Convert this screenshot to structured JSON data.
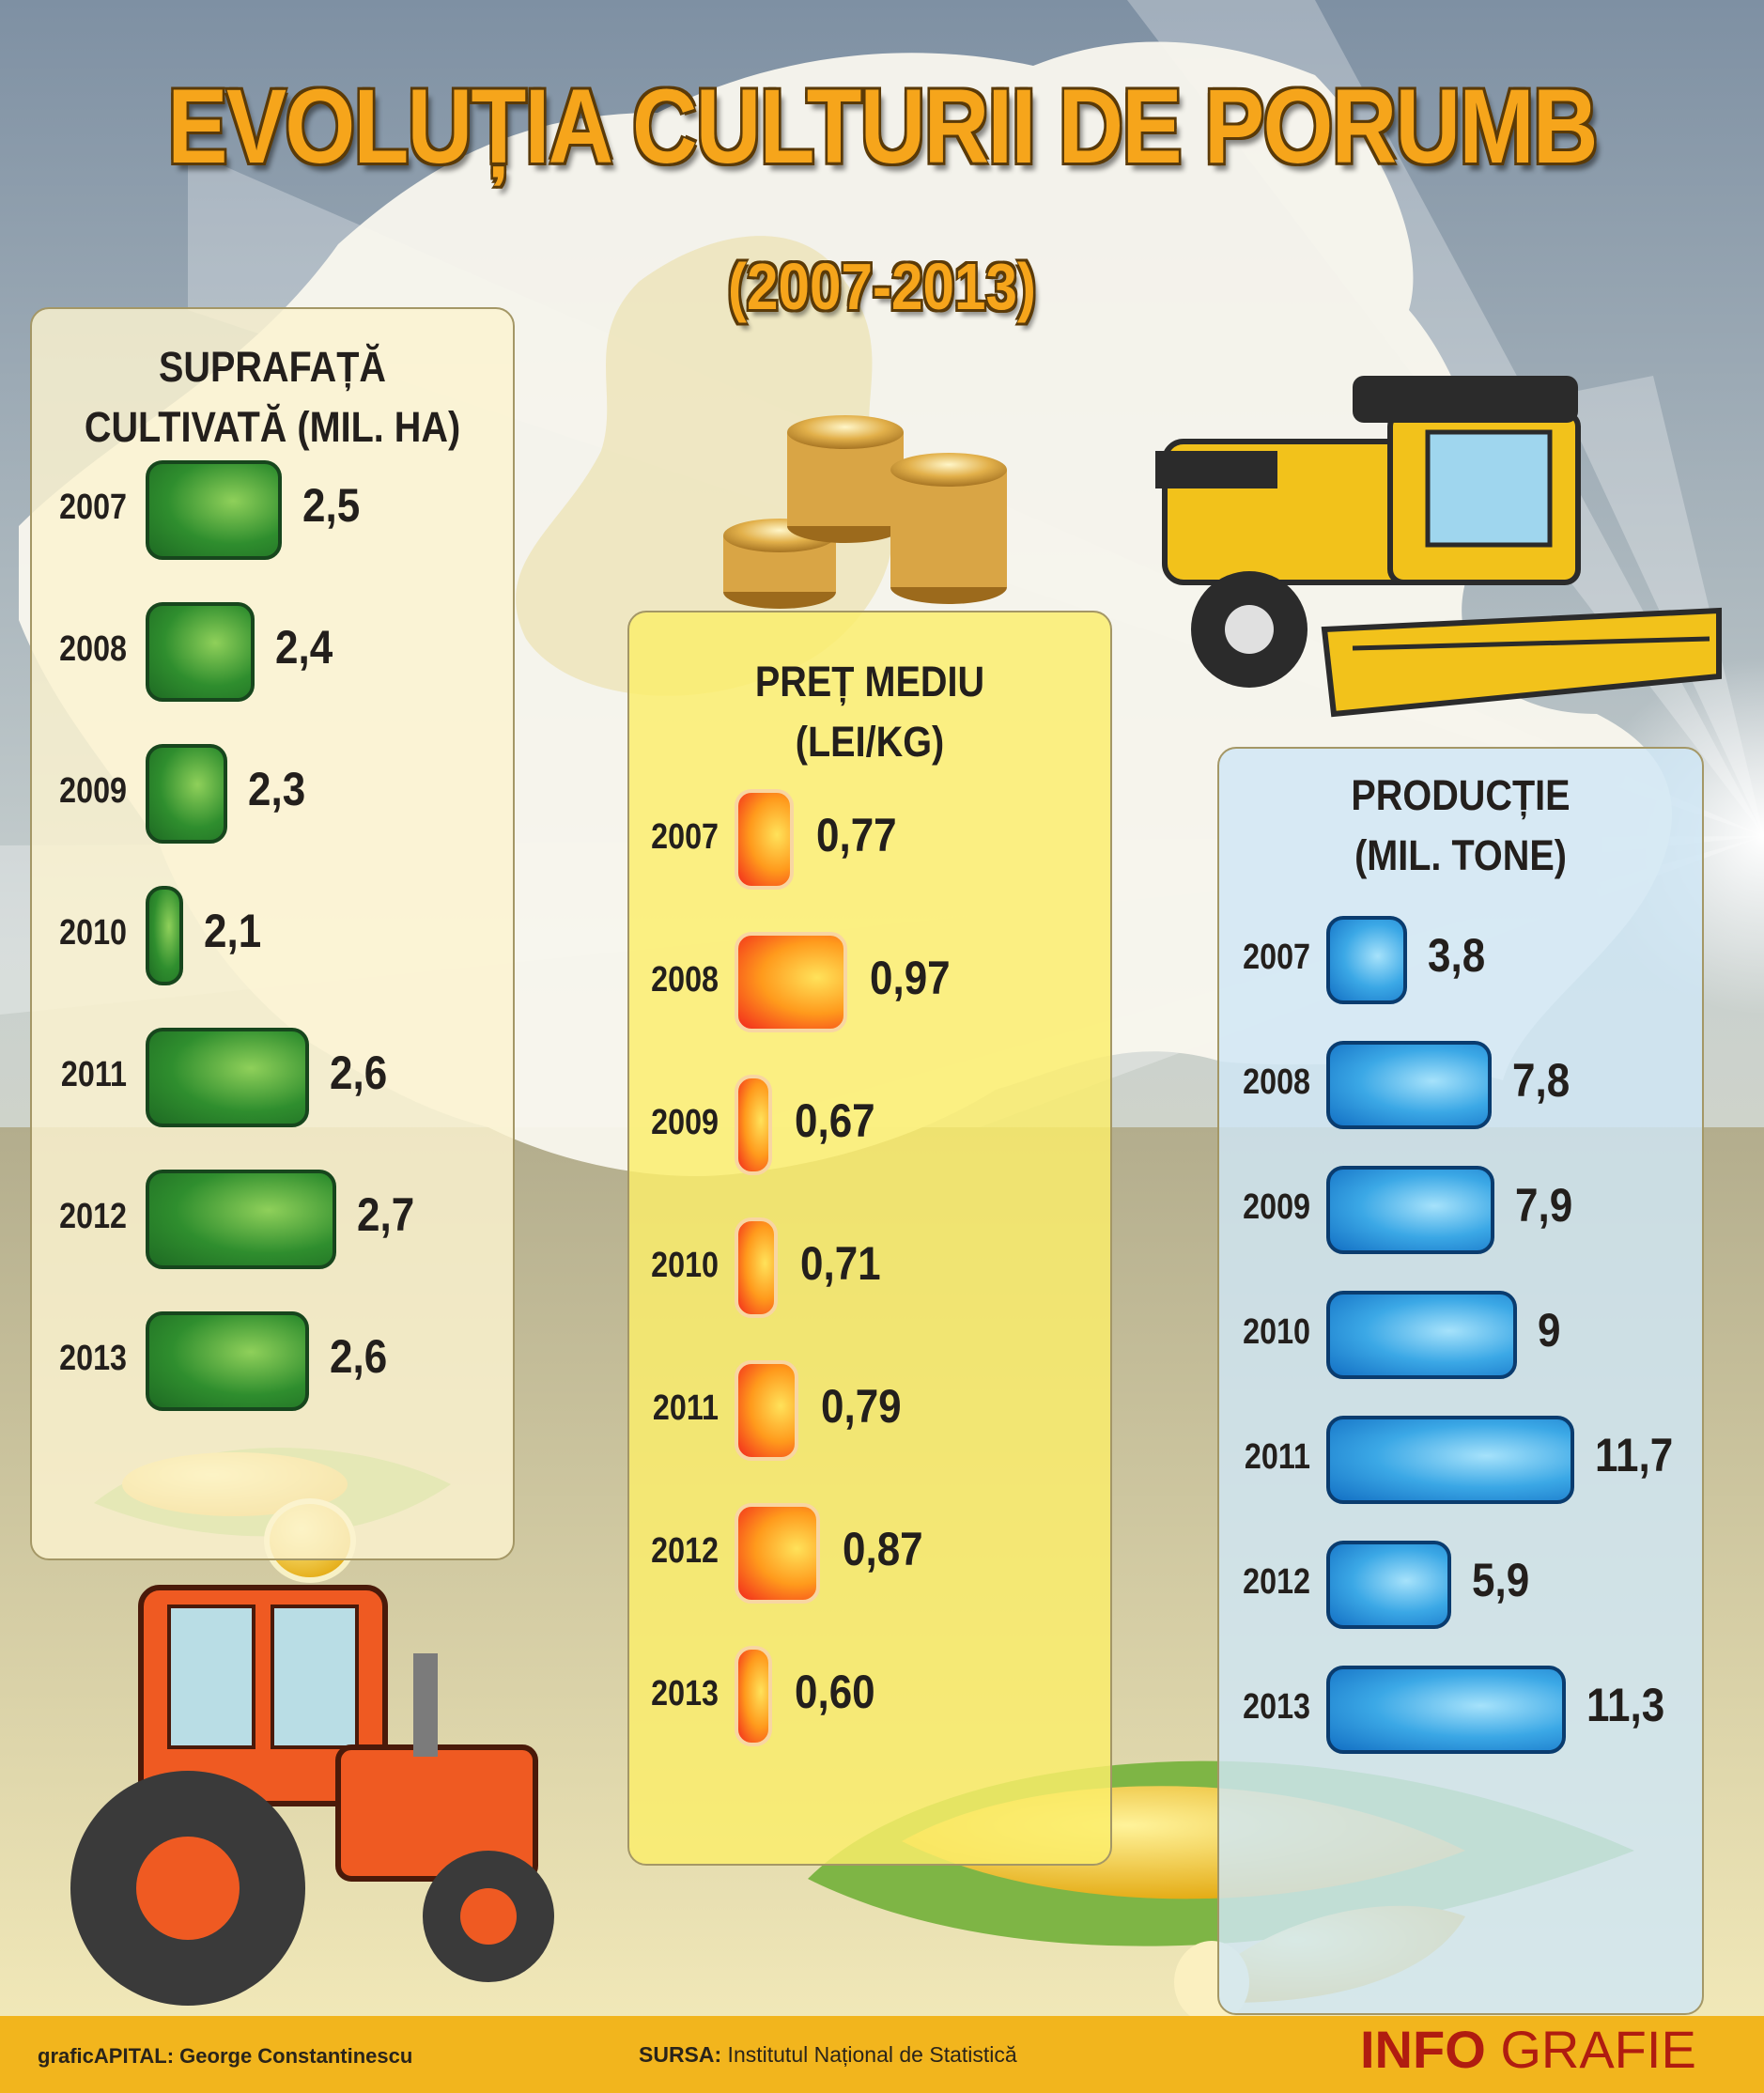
{
  "header": {
    "title": "EVOLUȚIA CULTURII DE PORUMB",
    "subtitle": "(2007-2013)"
  },
  "chart_data": [
    {
      "type": "bar",
      "orientation": "horizontal",
      "title": "SUPRAFAȚĂ CULTIVATĂ (MIL. HA)",
      "title_lines": [
        "SUPRAFAȚĂ",
        "CULTIVATĂ (MIL. HA)"
      ],
      "categories": [
        "2007",
        "2008",
        "2009",
        "2010",
        "2011",
        "2012",
        "2013"
      ],
      "values": [
        2.5,
        2.4,
        2.3,
        2.1,
        2.6,
        2.7,
        2.6
      ],
      "value_labels": [
        "2,5",
        "2,4",
        "2,3",
        "2,1",
        "2,6",
        "2,7",
        "2,6"
      ],
      "color": "#2f8e2e"
    },
    {
      "type": "bar",
      "orientation": "horizontal",
      "title": "PREȚ MEDIU (LEI/KG)",
      "title_lines": [
        "PREȚ MEDIU",
        "(LEI/KG)"
      ],
      "categories": [
        "2007",
        "2008",
        "2009",
        "2010",
        "2011",
        "2012",
        "2013"
      ],
      "values": [
        0.77,
        0.97,
        0.67,
        0.71,
        0.79,
        0.87,
        0.6
      ],
      "value_labels": [
        "0,77",
        "0,97",
        "0,67",
        "0,71",
        "0,79",
        "0,87",
        "0,60"
      ],
      "color": "#ff8a1c"
    },
    {
      "type": "bar",
      "orientation": "horizontal",
      "title": "PRODUCȚIE (MIL. TONE)",
      "title_lines": [
        "PRODUCȚIE",
        "(MIL. TONE)"
      ],
      "categories": [
        "2007",
        "2008",
        "2009",
        "2010",
        "2011",
        "2012",
        "2013"
      ],
      "values": [
        3.8,
        7.8,
        7.9,
        9,
        11.7,
        5.9,
        11.3
      ],
      "value_labels": [
        "3,8",
        "7,8",
        "7,9",
        "9",
        "11,7",
        "5,9",
        "11,3"
      ],
      "color": "#3ba8e6"
    }
  ],
  "footer": {
    "credit": "graficAPITAL: George Constantinescu",
    "source_label": "SURSA:",
    "source_text": " Institutul Național de Statistică",
    "brand_bold": "INFO",
    "brand_light": " GRAFIE"
  },
  "colors": {
    "title": "#f6a51b",
    "panel_green_bg": "#fbf3cf",
    "panel_yellow_bg": "#fbee6a",
    "panel_blue_bg": "#cfe7f5",
    "footer_band": "#f2b51d",
    "brand": "#b01c10"
  }
}
